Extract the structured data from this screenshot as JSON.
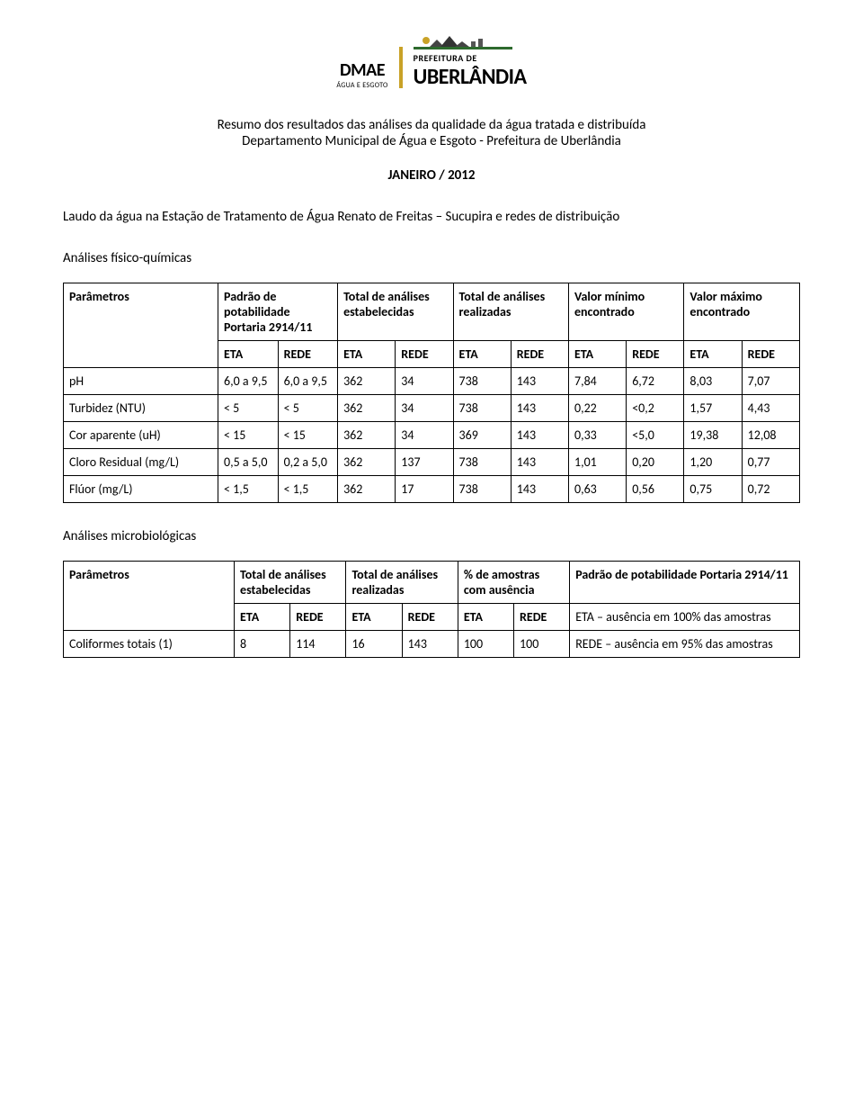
{
  "header": {
    "dmae_name": "DMAE",
    "dmae_sub": "ÁGUA E ESGOTO",
    "pref_label": "PREFEITURA DE",
    "city": "UBERLÂNDIA"
  },
  "title_line1": "Resumo dos resultados das análises da qualidade da água tratada e distribuída",
  "title_line2": "Departamento Municipal de Água e Esgoto - Prefeitura de Uberlândia",
  "month": "JANEIRO / 2012",
  "laudo_text": "Laudo da água na Estação de Tratamento de Água Renato de Freitas – Sucupira e redes de distribuição",
  "section_fq": "Análises físico-químicas",
  "section_mb": "Análises microbiológicas",
  "fq_table": {
    "headers": {
      "param": "Parâmetros",
      "padrao": "Padrão de potabilidade Portaria 2914/11",
      "tot_est": "Total de análises estabelecidas",
      "tot_real": "Total de análises realizadas",
      "vmin": "Valor mínimo encontrado",
      "vmax": "Valor máximo encontrado",
      "eta": "ETA",
      "rede": "REDE"
    },
    "rows": [
      {
        "param": "pH",
        "pad_eta": "6,0 a 9,5",
        "pad_rede": "6,0 a 9,5",
        "est_eta": "362",
        "est_rede": "34",
        "real_eta": "738",
        "real_rede": "143",
        "min_eta": "7,84",
        "min_rede": "6,72",
        "max_eta": "8,03",
        "max_rede": "7,07"
      },
      {
        "param": "Turbidez (NTU)",
        "pad_eta": "< 5",
        "pad_rede": "< 5",
        "est_eta": "362",
        "est_rede": "34",
        "real_eta": "738",
        "real_rede": "143",
        "min_eta": "0,22",
        "min_rede": "<0,2",
        "max_eta": "1,57",
        "max_rede": "4,43"
      },
      {
        "param": "Cor aparente (uH)",
        "pad_eta": "< 15",
        "pad_rede": "< 15",
        "est_eta": "362",
        "est_rede": "34",
        "real_eta": "369",
        "real_rede": "143",
        "min_eta": "0,33",
        "min_rede": "<5,0",
        "max_eta": "19,38",
        "max_rede": "12,08"
      },
      {
        "param": "Cloro Residual (mg/L)",
        "pad_eta": "0,5 a 5,0",
        "pad_rede": "0,2 a 5,0",
        "est_eta": "362",
        "est_rede": "137",
        "real_eta": "738",
        "real_rede": "143",
        "min_eta": "1,01",
        "min_rede": "0,20",
        "max_eta": "1,20",
        "max_rede": "0,77"
      },
      {
        "param": "Flúor (mg/L)",
        "pad_eta": "< 1,5",
        "pad_rede": "< 1,5",
        "est_eta": "362",
        "est_rede": "17",
        "real_eta": "738",
        "real_rede": "143",
        "min_eta": "0,63",
        "min_rede": "0,56",
        "max_eta": "0,75",
        "max_rede": "0,72"
      }
    ]
  },
  "mb_table": {
    "headers": {
      "param": "Parâmetros",
      "tot_est": "Total de análises estabelecidas",
      "tot_real": "Total de análises realizadas",
      "pct": "% de amostras com ausência",
      "padrao": "Padrão de potabilidade Portaria 2914/11",
      "eta": "ETA",
      "rede": "REDE"
    },
    "note_eta": "ETA – ausência em 100% das amostras",
    "note_rede": "REDE – ausência em 95% das amostras",
    "rows": [
      {
        "param": "Coliformes totais (1)",
        "est_eta": "8",
        "est_rede": "114",
        "real_eta": "16",
        "real_rede": "143",
        "pct_eta": "100",
        "pct_rede": "100"
      }
    ]
  }
}
